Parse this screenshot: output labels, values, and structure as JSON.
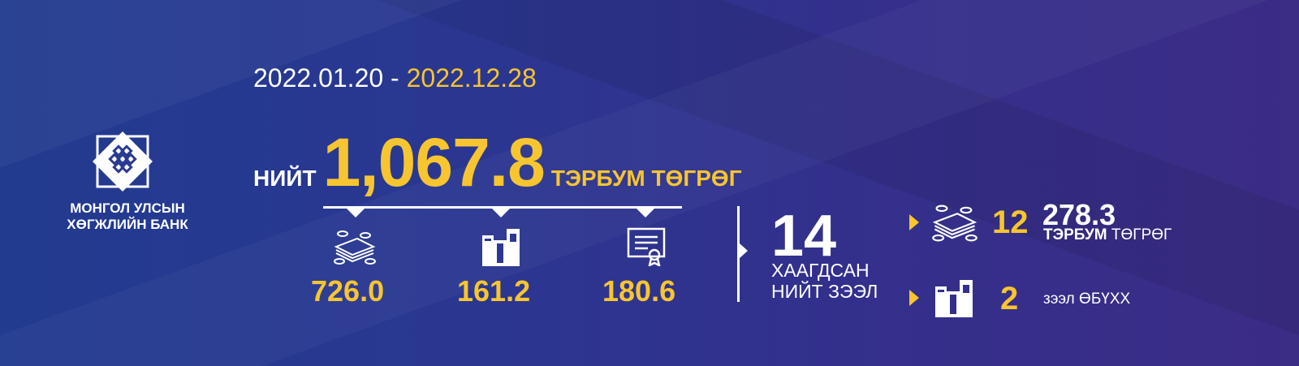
{
  "logo": {
    "line1": "МОНГОЛ УЛСЫН",
    "line2": "ХӨГЖЛИЙН БАНК"
  },
  "date": {
    "start": "2022.01.20",
    "sep": " - ",
    "end": "2022.12.28"
  },
  "total": {
    "label": "НИЙТ",
    "value": "1,067.8",
    "unit": "ТЭРБУМ ТӨГРӨГ"
  },
  "breakdown": [
    {
      "icon": "money-icon",
      "value": "726.0"
    },
    {
      "icon": "buildings-icon",
      "value": "161.2"
    },
    {
      "icon": "certificate-icon",
      "value": "180.6"
    }
  ],
  "closed": {
    "count": "14",
    "line1": "ХААГДСАН",
    "line2": "НИЙТ ЗЭЭЛ"
  },
  "details": [
    {
      "icon": "money-icon",
      "count": "12",
      "amount": "278.3",
      "unit_bold": "ТЭРБУМ",
      "unit": " ТӨГРӨГ"
    },
    {
      "icon": "buildings-icon",
      "count": "2",
      "label": "зээл ӨБҮХХ"
    }
  ],
  "colors": {
    "accent": "#f7c52f",
    "bg_left": "#223b8f",
    "bg_right": "#3b2c86"
  }
}
